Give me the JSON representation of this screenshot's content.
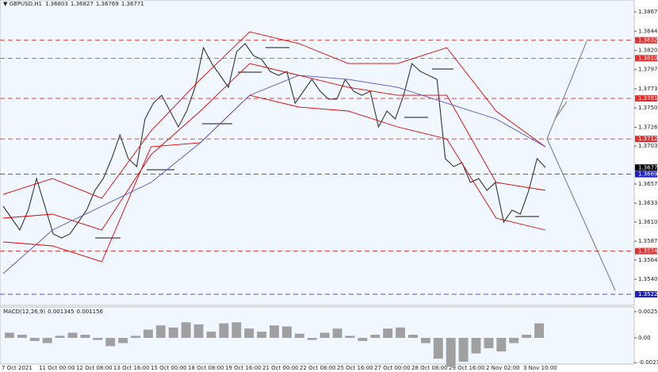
{
  "chart_data": {
    "type": "price",
    "symbol": "GBPUSD,H1",
    "ohlc": [
      1.36803,
      1.36827,
      1.36769,
      1.36771
    ],
    "ylim": [
      1.35085,
      1.38821
    ],
    "yticks": [
      1.38675,
      {
        "value": 1.3844,
        "label": "1.38440"
      },
      1.38205,
      {
        "value": 1.3797,
        "label": "1.37970"
      },
      1.37735,
      {
        "value": 1.375,
        "label": "1.37500"
      },
      1.37265,
      1.37035,
      {
        "value": 1.3657,
        "label": "1.36570"
      },
      1.36335,
      1.36105,
      {
        "value": 1.3587,
        "label": "1.35870"
      },
      {
        "value": 1.3564,
        "label": "1.35640"
      },
      1.35405
    ],
    "x_labels": [
      "7 Oct 2021",
      "11 Oct 00:00",
      "12 Oct 08:00",
      "13 Oct 16:00",
      "15 Oct 00:00",
      "18 Oct 08:00",
      "19 Oct 16:00",
      "21 Oct 00:00",
      "22 Oct 08:00",
      "25 Oct 16:00",
      "27 Oct 00:00",
      "28 Oct 08:00",
      "29 Oct 16:00",
      "2 Nov 02:00",
      "3 Nov 10:00"
    ],
    "series": [
      {
        "name": "Close",
        "color": "#333333",
        "values": [
          1.36298,
          1.36152,
          1.36007,
          1.36249,
          1.36637,
          1.36298,
          1.35958,
          1.3591,
          1.35958,
          1.36104,
          1.36249,
          1.36492,
          1.36637,
          1.3688,
          1.37171,
          1.3688,
          1.36783,
          1.37365,
          1.37559,
          1.37656,
          1.37462,
          1.37268,
          1.37462,
          1.37753,
          1.38238,
          1.38044,
          1.37899,
          1.37753,
          1.3819,
          1.38287,
          1.38141,
          1.38093,
          1.37947,
          1.37899,
          1.37947,
          1.37559,
          1.37705,
          1.3785,
          1.37705,
          1.37608,
          1.37608,
          1.3785,
          1.37705,
          1.37656,
          1.37705,
          1.37268,
          1.37462,
          1.37365,
          1.37656,
          1.38044,
          1.37947,
          1.37899,
          1.3785,
          1.3688,
          1.36783,
          1.36831,
          1.36589,
          1.36637,
          1.36492,
          1.36589,
          1.36104,
          1.36249,
          1.36201,
          1.36492,
          1.3688,
          1.36771
        ]
      },
      {
        "name": "Upper Band",
        "color": "#e00000",
        "values": [
          1.36443,
          1.36637,
          1.36395,
          1.3722,
          1.3785,
          1.38432,
          1.38287,
          1.38044,
          1.38044,
          1.38238,
          1.37462,
          1.37025
        ]
      },
      {
        "name": "Middle Band",
        "color": "#e00000",
        "values": [
          1.36152,
          1.36201,
          1.36007,
          1.36928,
          1.37462,
          1.38044,
          1.37899,
          1.37753,
          1.37656,
          1.37656,
          1.36589,
          1.36492
        ]
      },
      {
        "name": "Lower Band",
        "color": "#e00000",
        "values": [
          1.35861,
          1.35813,
          1.35619,
          1.37025,
          1.37074,
          1.37656,
          1.37511,
          1.37462,
          1.37268,
          1.37122,
          1.36152,
          1.36007
        ]
      },
      {
        "name": "Moving Average",
        "color": "#5555cc",
        "values": [
          1.35473,
          1.36007,
          1.36298,
          1.36589,
          1.37074,
          1.37656,
          1.37899,
          1.3785,
          1.37753,
          1.37559,
          1.37365,
          1.37025
        ]
      }
    ],
    "levels": [
      {
        "value": 1.38329,
        "color": "#e03030"
      },
      {
        "value": 1.38109,
        "color": "#e03030"
      },
      {
        "value": 1.37617,
        "color": "#e03030"
      },
      {
        "value": 1.37121,
        "color": "#e03030"
      },
      {
        "value": 1.3669,
        "label": "1.36690",
        "color": "#2020c0"
      },
      {
        "value": 1.35749,
        "color": "#e03030"
      },
      {
        "value": 1.35221,
        "color": "#2020c0"
      }
    ],
    "last_price": 1.36771,
    "macd": {
      "label": "MACD(12,26,9)",
      "readings": [
        0.001345,
        0.001156
      ],
      "ylim": [
        -0.00275,
        0.0029
      ],
      "yticks": [
        0.002521,
        {
          "value": 0,
          "label": "0.00"
        },
        -0.002386
      ],
      "color": "#a0a0a0",
      "values": [
        0.0005,
        0.0003,
        -0.0003,
        -0.0005,
        0.0002,
        0.0005,
        0.0003,
        -0.0002,
        -0.0008,
        -0.0005,
        0.0002,
        0.0008,
        0.0012,
        0.001,
        0.0015,
        0.0013,
        0.0006,
        0.0014,
        0.0015,
        0.0009,
        0.0006,
        0.0012,
        0.0011,
        0.0004,
        -0.0002,
        0.0005,
        0.0009,
        0.0002,
        -0.0003,
        0.0003,
        0.0009,
        0.001,
        0.0003,
        -0.0005,
        -0.002,
        -0.0028,
        -0.0023,
        -0.0015,
        -0.001,
        -0.0013,
        -0.0005,
        0.0003,
        0.0014
      ]
    }
  }
}
